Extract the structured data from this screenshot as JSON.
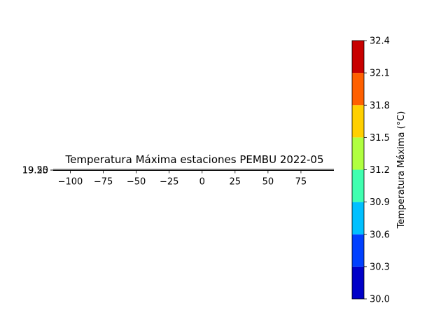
{
  "chart_data": [
    {
      "type": "scatter",
      "title": "Temperatura Máxima estaciones PEMBU 2022-05",
      "xlabel": "",
      "ylabel": "",
      "x_ticks": [
        -100,
        -75,
        -50,
        -25,
        0,
        25,
        50,
        75
      ],
      "x_tick_labels": [
        "−100",
        "−75",
        "−50",
        "−25",
        "0",
        "25",
        "50",
        "75"
      ],
      "xlim": [
        -113,
        100
      ],
      "y_tick_labels": [
        "19.50",
        "19.25"
      ],
      "series": []
    },
    {
      "type": "heatmap",
      "colorbar_label": "Temperatura Máxima (°C)",
      "bounds": [
        30.0,
        30.3,
        30.6,
        30.9,
        31.2,
        31.5,
        31.8,
        32.1,
        32.4
      ],
      "tick_labels": [
        "30.0",
        "30.3",
        "30.6",
        "30.9",
        "31.2",
        "31.5",
        "31.8",
        "32.1",
        "32.4"
      ],
      "colors": [
        "#0000c8",
        "#0040ff",
        "#00c0ff",
        "#40ffb0",
        "#b0ff40",
        "#ffd000",
        "#ff6000",
        "#c80000"
      ]
    }
  ]
}
